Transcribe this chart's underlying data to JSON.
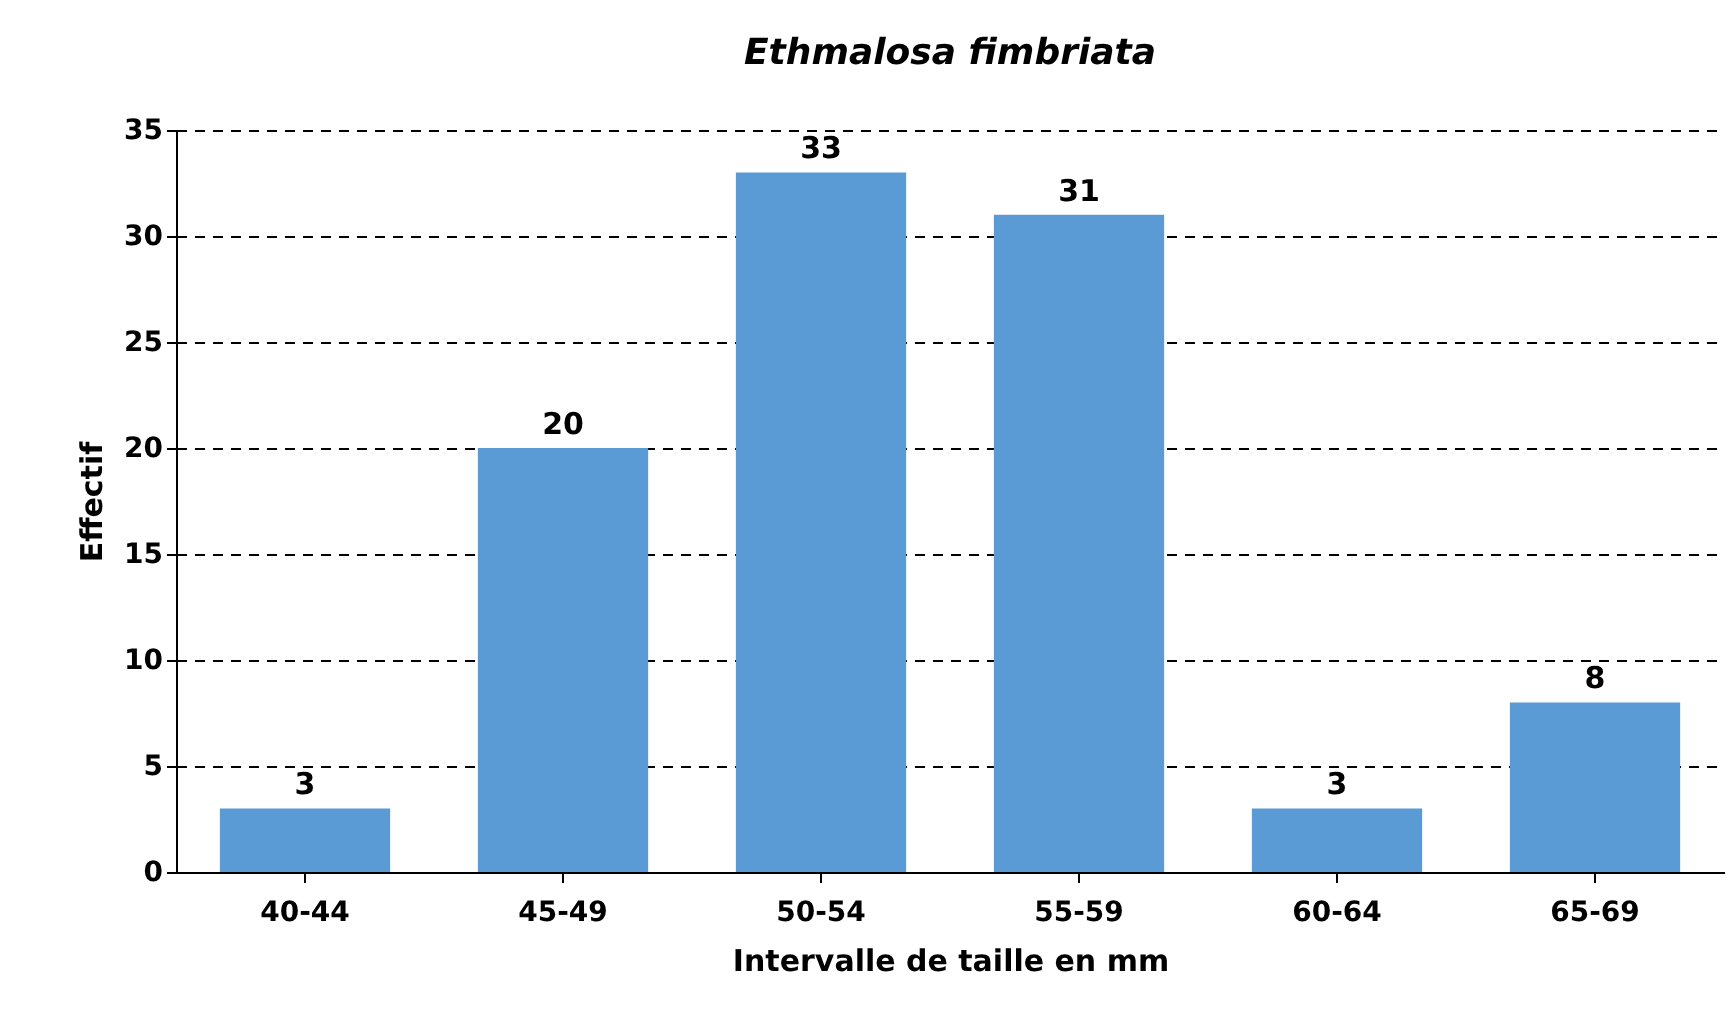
{
  "chart_data": {
    "type": "bar",
    "title": "Ethmalosa fimbriata",
    "xlabel": "Intervalle de taille en mm",
    "ylabel": "Effectif",
    "categories": [
      "40-44",
      "45-49",
      "50-54",
      "55-59",
      "60-64",
      "65-69"
    ],
    "values": [
      3,
      20,
      33,
      31,
      3,
      8
    ],
    "color": "#5b9bd5",
    "ylim": [
      0,
      35
    ],
    "yticks": [
      0,
      5,
      10,
      15,
      20,
      25,
      30,
      35
    ],
    "grid": "y",
    "data_labels": true
  }
}
